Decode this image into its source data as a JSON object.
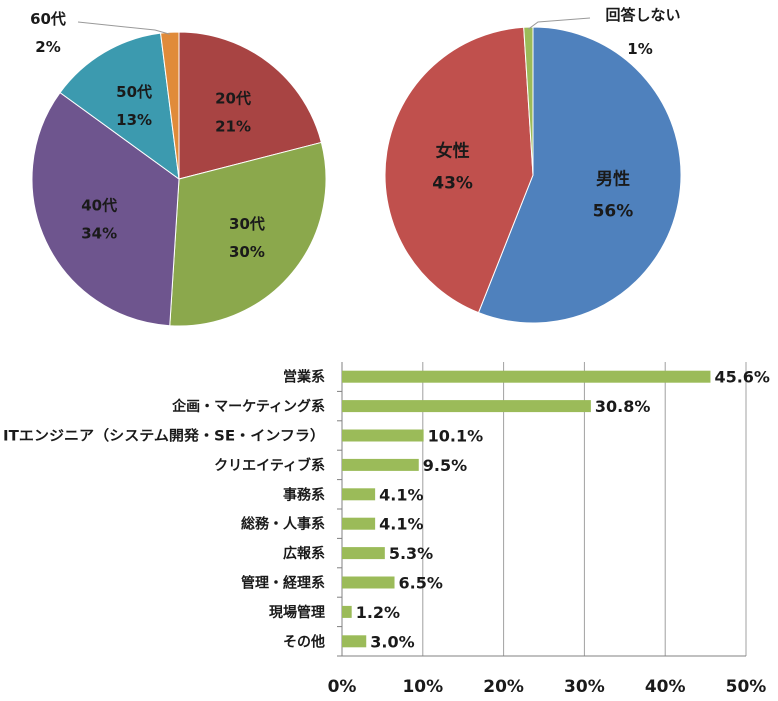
{
  "chart_data": [
    {
      "type": "pie",
      "slices": [
        {
          "label": "20代",
          "value": 21,
          "text": "21%",
          "color": "#A84443"
        },
        {
          "label": "30代",
          "value": 30,
          "text": "30%",
          "color": "#8BA84C"
        },
        {
          "label": "40代",
          "value": 34,
          "text": "34%",
          "color": "#6E558E"
        },
        {
          "label": "50代",
          "value": 13,
          "text": "13%",
          "color": "#3C9AAF"
        },
        {
          "label": "60代",
          "value": 2,
          "text": "2%",
          "color": "#E08B3A"
        }
      ]
    },
    {
      "type": "pie",
      "slices": [
        {
          "label": "男性",
          "value": 56,
          "text": "56%",
          "color": "#4F81BD"
        },
        {
          "label": "女性",
          "value": 43,
          "text": "43%",
          "color": "#C0504D"
        },
        {
          "label": "回答しない",
          "value": 1,
          "text": "1%",
          "color": "#9BBB59"
        }
      ]
    },
    {
      "type": "bar",
      "orientation": "horizontal",
      "categories": [
        "営業系",
        "企画・マーケティング系",
        "ITエンジニア（システム開発・SE・インフラ）",
        "クリエイティブ系",
        "事務系",
        "総務・人事系",
        "広報系",
        "管理・経理系",
        "現場管理",
        "その他"
      ],
      "values": [
        45.6,
        30.8,
        10.1,
        9.5,
        4.1,
        4.1,
        5.3,
        6.5,
        1.2,
        3.0
      ],
      "value_labels": [
        "45.6%",
        "30.8%",
        "10.1%",
        "9.5%",
        "4.1%",
        "4.1%",
        "5.3%",
        "6.5%",
        "1.2%",
        "3.0%"
      ],
      "xlim": [
        0,
        50
      ],
      "xticks": [
        "0%",
        "10%",
        "20%",
        "30%",
        "40%",
        "50%"
      ],
      "grid": true,
      "bar_color": "#9BBB59"
    }
  ]
}
